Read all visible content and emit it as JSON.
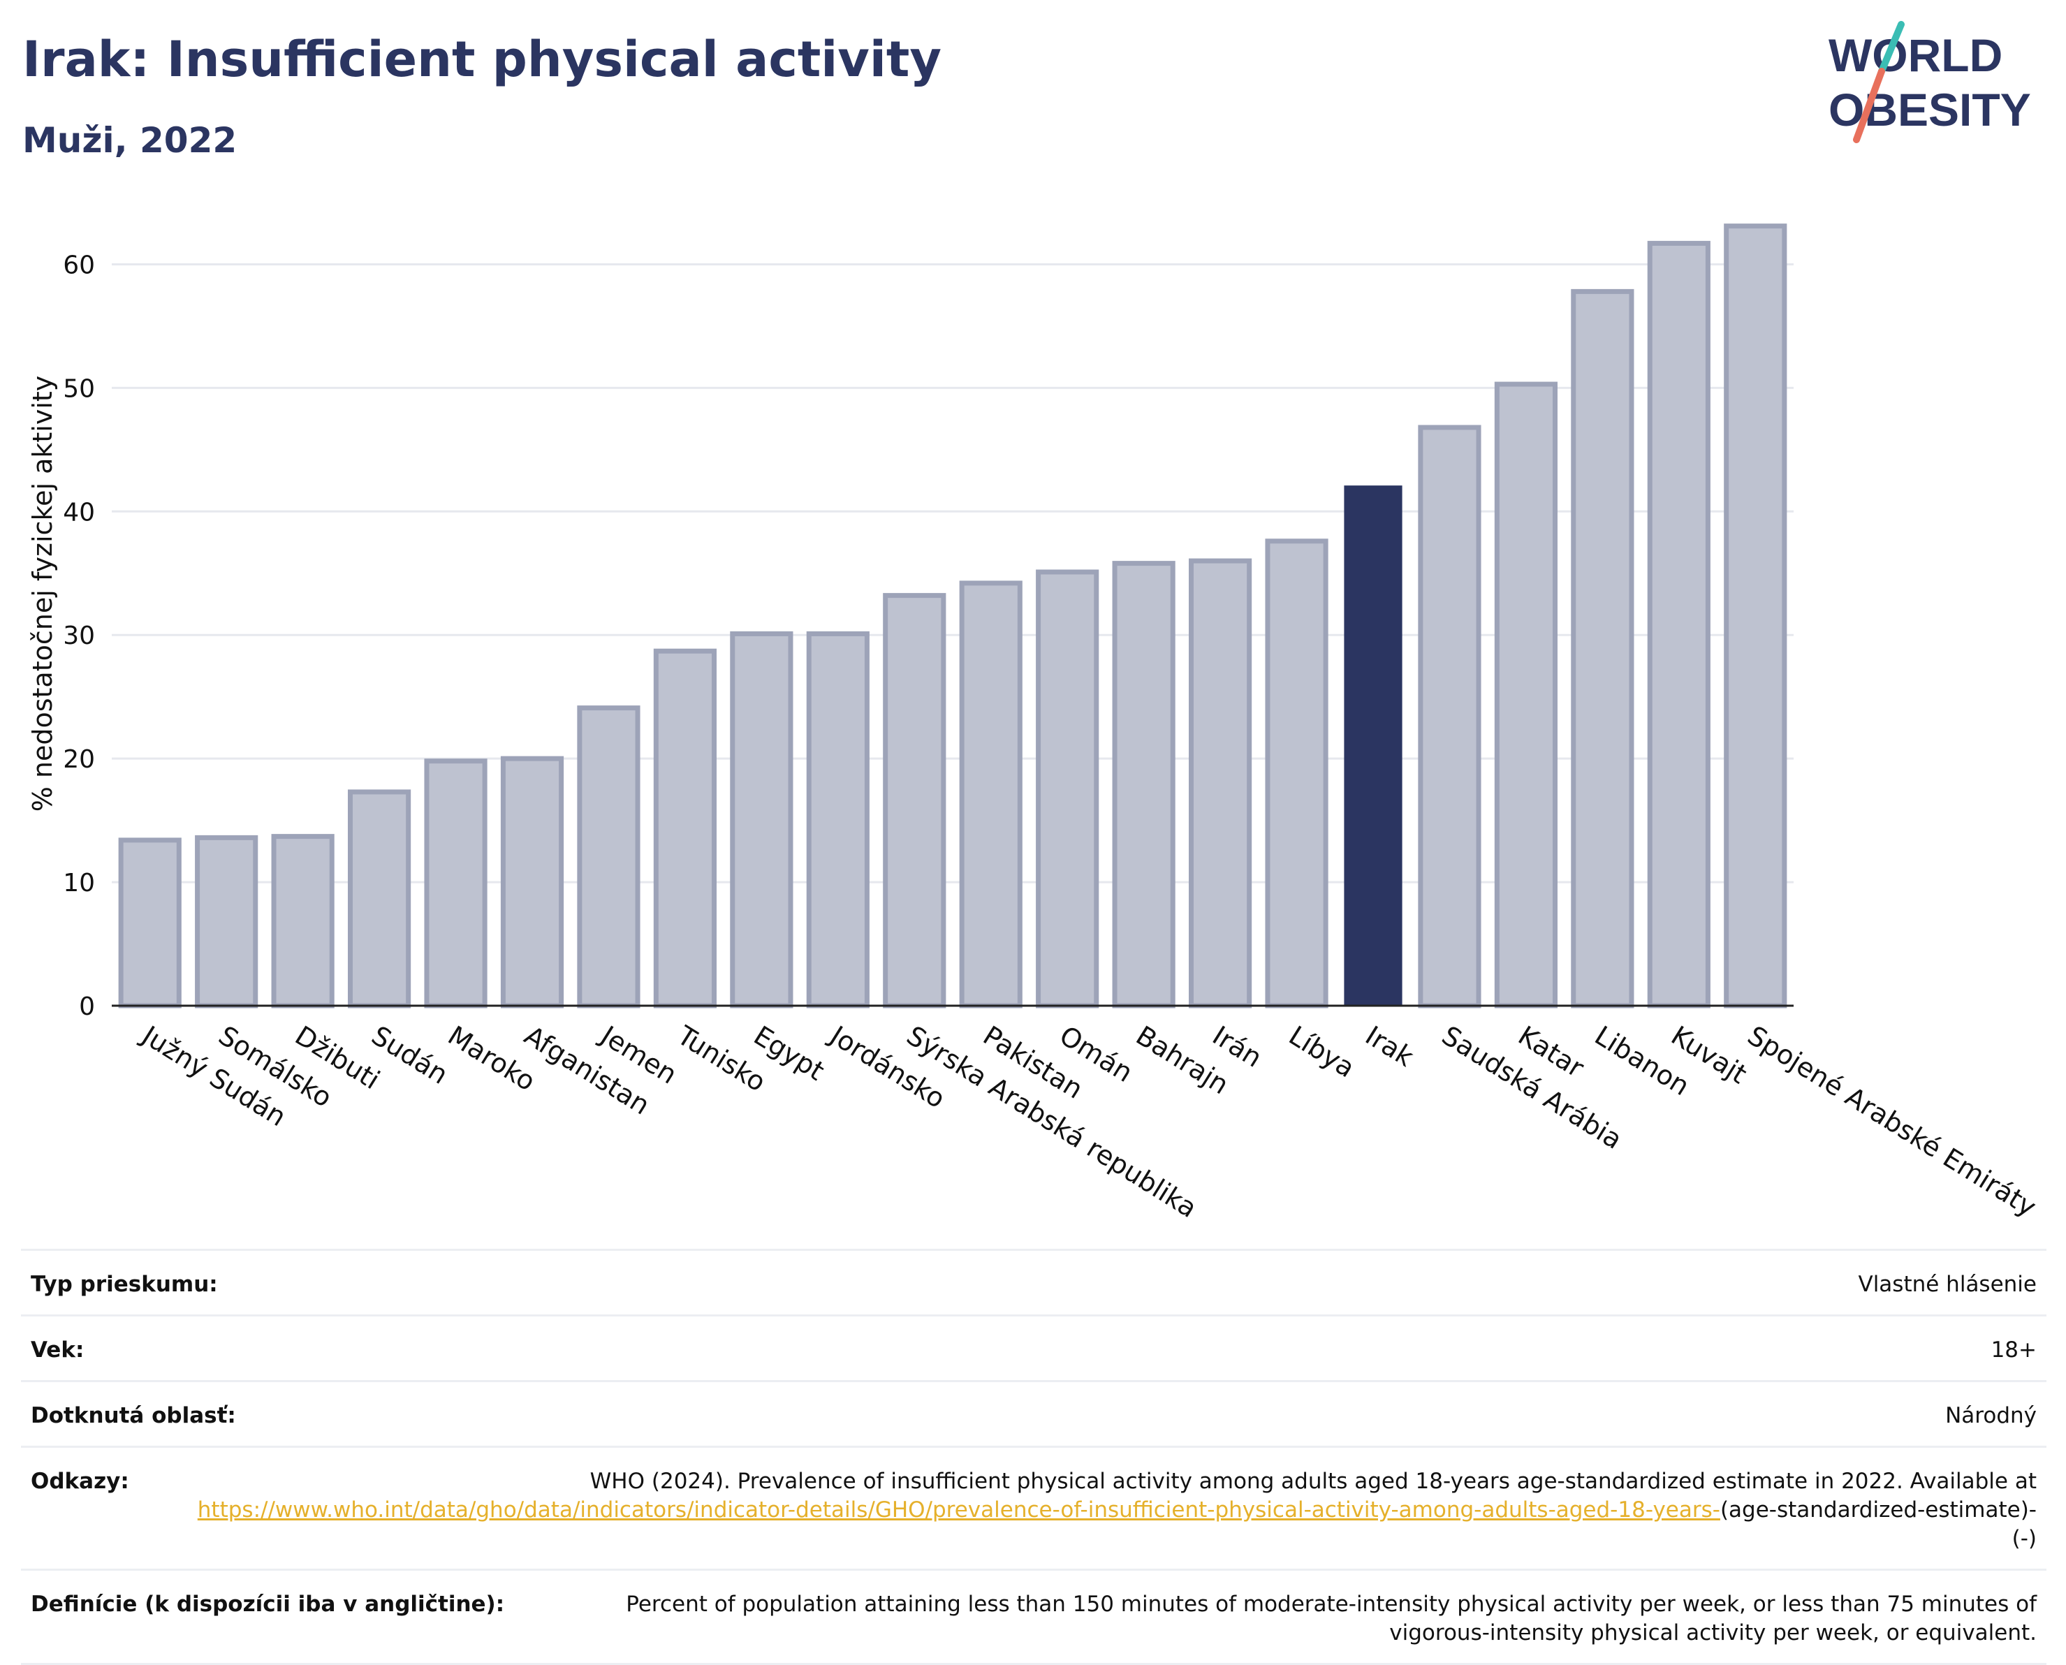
{
  "header": {
    "title": "Irak: Insufficient physical activity",
    "subtitle": "Muži, 2022"
  },
  "logo": {
    "line1": "WORLD",
    "line2": "OBESITY"
  },
  "colors": {
    "bar": "#bec2d0",
    "bar_stroke": "#9da3b8",
    "highlight": "#2b3561",
    "text": "#2b3561",
    "grid": "#e6e8ee",
    "link": "#e5b02b"
  },
  "chart_data": {
    "type": "bar",
    "title": "Irak: Insufficient physical activity",
    "subtitle": "Muži, 2022",
    "xlabel": "",
    "ylabel": "% nedostatočnej fyzickej aktivity",
    "ylim": [
      0,
      65
    ],
    "yticks": [
      0,
      10,
      20,
      30,
      40,
      50,
      60
    ],
    "grid": true,
    "highlight": "Irak",
    "categories": [
      "Južný Sudán",
      "Somálsko",
      "Džibuti",
      "Sudán",
      "Maroko",
      "Afganistan",
      "Jemen",
      "Tunisko",
      "Egypt",
      "Jordánsko",
      "Sýrska Arabská republika",
      "Pakistan",
      "Omán",
      "Bahrajn",
      "Irán",
      "Líbya",
      "Irak",
      "Saudská Arábia",
      "Katar",
      "Libanon",
      "Kuvajt",
      "Spojené Arabské Emiráty"
    ],
    "values": [
      13.4,
      13.6,
      13.7,
      17.3,
      19.8,
      20.0,
      24.1,
      28.7,
      30.1,
      30.1,
      33.2,
      34.2,
      35.1,
      35.8,
      36.0,
      37.6,
      42.1,
      46.8,
      50.3,
      57.8,
      61.7,
      63.1
    ]
  },
  "meta": {
    "survey_type_label": "Typ prieskumu:",
    "survey_type_value": "Vlastné hlásenie",
    "age_label": "Vek:",
    "age_value": "18+",
    "area_label": "Dotknutá oblasť:",
    "area_value": "Národný",
    "refs_label": "Odkazy:",
    "refs_text": "WHO (2024). Prevalence of insufficient physical activity among adults aged 18-years age-standardized estimate in 2022. Available at",
    "refs_link": "https://www.who.int/data/gho/data/indicators/indicator-details/GHO/prevalence-of-insufficient-physical-activity-among-adults-aged-18-years-",
    "refs_tail": "(age-standardized-estimate)-(-)",
    "defs_label": "Definície (k dispozícii iba v angličtine):",
    "defs_value": "Percent of population attaining less than 150 minutes of moderate-intensity physical activity per week, or less than 75 minutes of vigorous-intensity physical activity per week, or equivalent."
  }
}
